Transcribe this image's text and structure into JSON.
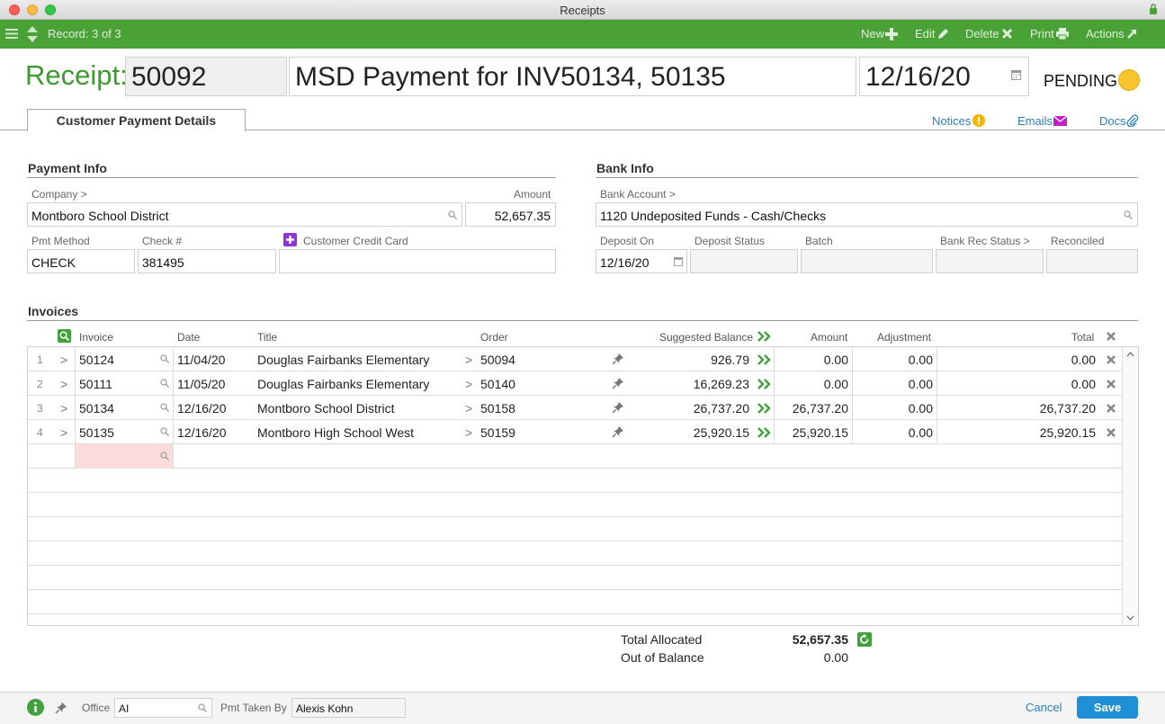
{
  "window": {
    "title": "Receipts"
  },
  "toolbar": {
    "record": "Record: 3 of 3",
    "new": "New",
    "edit": "Edit",
    "delete": "Delete",
    "print": "Print",
    "actions": "Actions"
  },
  "header": {
    "label": "Receipt:",
    "number": "50092",
    "title": "MSD Payment for INV50134, 50135",
    "date": "12/16/20",
    "status": "PENDING"
  },
  "tabs": {
    "active": "Customer Payment Details",
    "notices": "Notices",
    "emails": "Emails",
    "docs": "Docs"
  },
  "payment_info": {
    "title": "Payment Info",
    "company_label": "Company >",
    "company": "Montboro School District",
    "amount_label": "Amount",
    "amount": "52,657.35",
    "pmt_method_label": "Pmt Method",
    "pmt_method": "CHECK",
    "check_label": "Check #",
    "check": "381495",
    "ccc_label": "Customer Credit Card",
    "ccc": ""
  },
  "bank_info": {
    "title": "Bank Info",
    "bank_account_label": "Bank Account >",
    "bank_account": "1120 Undeposited Funds - Cash/Checks",
    "deposit_on_label": "Deposit On",
    "deposit_on": "12/16/20",
    "deposit_status_label": "Deposit Status",
    "batch_label": "Batch",
    "bank_rec_label": "Bank Rec Status >",
    "reconciled_label": "Reconciled"
  },
  "invoices": {
    "title": "Invoices",
    "columns": {
      "invoice": "Invoice",
      "date": "Date",
      "title": "Title",
      "order": "Order",
      "suggested": "Suggested Balance",
      "amount": "Amount",
      "adjustment": "Adjustment",
      "total": "Total"
    },
    "rows": [
      {
        "num": "1",
        "invoice": "50124",
        "date": "11/04/20",
        "title": "Douglas Fairbanks Elementary",
        "order": "50094",
        "suggested": "926.79",
        "amount": "0.00",
        "adjustment": "0.00",
        "total": "0.00"
      },
      {
        "num": "2",
        "invoice": "50111",
        "date": "11/05/20",
        "title": "Douglas Fairbanks Elementary",
        "order": "50140",
        "suggested": "16,269.23",
        "amount": "0.00",
        "adjustment": "0.00",
        "total": "0.00"
      },
      {
        "num": "3",
        "invoice": "50134",
        "date": "12/16/20",
        "title": "Montboro School District",
        "order": "50158",
        "suggested": "26,737.20",
        "amount": "26,737.20",
        "adjustment": "0.00",
        "total": "26,737.20"
      },
      {
        "num": "4",
        "invoice": "50135",
        "date": "12/16/20",
        "title": "Montboro High School West",
        "order": "50159",
        "suggested": "25,920.15",
        "amount": "25,920.15",
        "adjustment": "0.00",
        "total": "25,920.15"
      }
    ]
  },
  "totals": {
    "allocated_label": "Total Allocated",
    "allocated": "52,657.35",
    "out_label": "Out of Balance",
    "out": "0.00"
  },
  "footer": {
    "office_label": "Office",
    "office": "AI",
    "taken_label": "Pmt Taken By",
    "taken": "Alexis Kohn",
    "cancel": "Cancel",
    "save": "Save"
  }
}
